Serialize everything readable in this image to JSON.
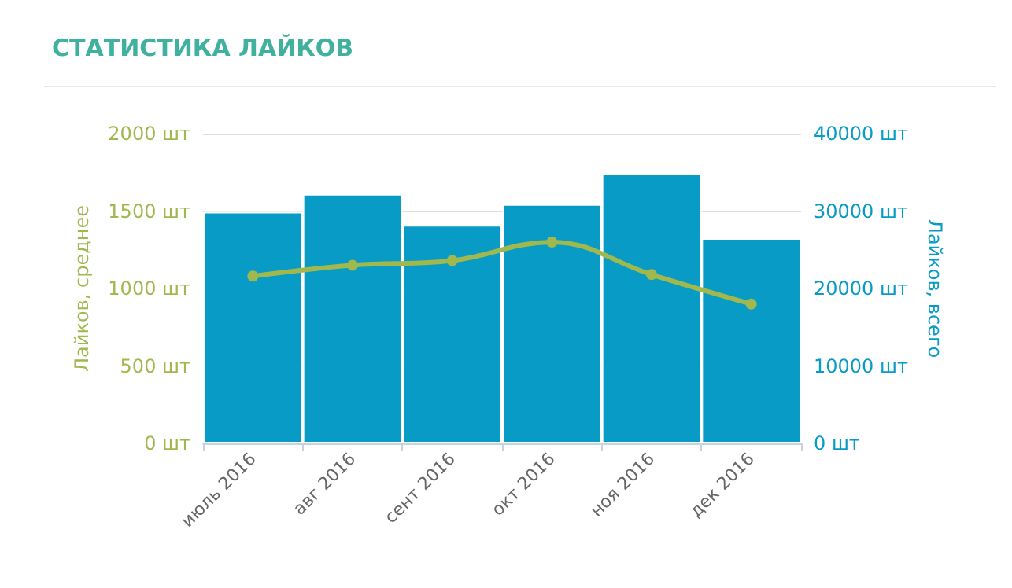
{
  "chart_data": {
    "type": "bar",
    "title": "СТАТИСТИКА ЛАЙКОВ",
    "categories": [
      "июль 2016",
      "авг 2016",
      "сент 2016",
      "окт 2016",
      "ноя 2016",
      "дек 2016"
    ],
    "series": [
      {
        "axis": "y2",
        "color": "#079bc6",
        "values": [
          29900,
          32200,
          28200,
          30900,
          34900,
          26500
        ]
      },
      {
        "type": "line",
        "axis": "y",
        "color": "#a0b84e",
        "values": [
          1080,
          1150,
          1180,
          1300,
          1090,
          900
        ]
      }
    ],
    "ylabel": "Лайков, среднее",
    "y2label": "Лайков, всего",
    "ylim": [
      0,
      2000
    ],
    "yticks": [
      {
        "value": 0,
        "label": "0 шт"
      },
      {
        "value": 500,
        "label": "500 шт"
      },
      {
        "value": 1000,
        "label": "1000 шт"
      },
      {
        "value": 1500,
        "label": "1500 шт"
      },
      {
        "value": 2000,
        "label": "2000 шт"
      }
    ],
    "y2lim": [
      0,
      40000
    ],
    "y2ticks": [
      {
        "value": 0,
        "label": "0 шт"
      },
      {
        "value": 10000,
        "label": "10000 шт"
      },
      {
        "value": 20000,
        "label": "20000 шт"
      },
      {
        "value": 30000,
        "label": "30000 шт"
      },
      {
        "value": 40000,
        "label": "40000 шт"
      }
    ],
    "grid": "y",
    "marker": "circle",
    "line_style": "solid"
  }
}
